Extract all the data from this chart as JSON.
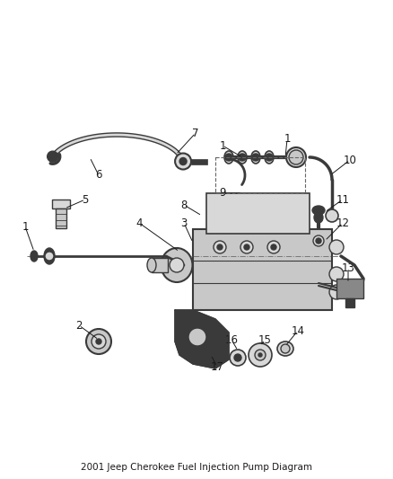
{
  "title": "2001 Jeep Cherokee Fuel Injection Pump Diagram",
  "bg_color": "#ffffff",
  "fig_width": 4.38,
  "fig_height": 5.33,
  "dpi": 100,
  "line_color": "#1a1a1a",
  "label_color": "#1a1a1a",
  "font_size": 8.5,
  "title_font_size": 7.5,
  "pump_color": "#c8c8c8",
  "dark_part_color": "#3a3a3a",
  "mid_gray": "#888888",
  "light_gray": "#d8d8d8"
}
